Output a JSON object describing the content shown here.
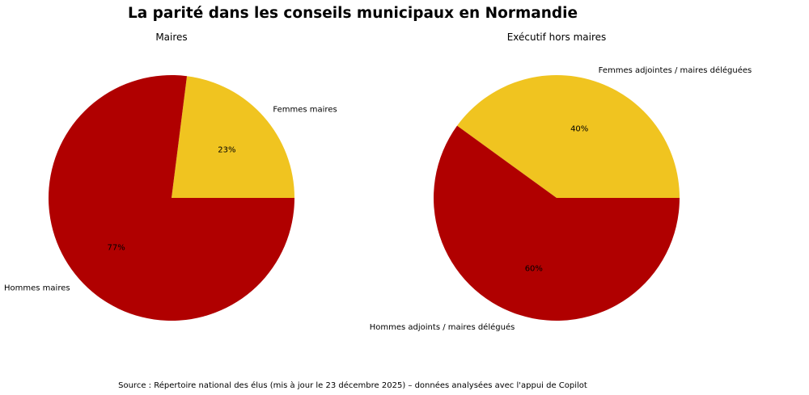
{
  "title": "La parité dans les conseils municipaux en Normandie",
  "source": "Source : Répertoire national des élus (mis à jour le 23 décembre 2025) – données analysées avec l'appui de Copilot",
  "colors": {
    "femmes": "#F0C420",
    "hommes": "#B00000"
  },
  "chart_data": [
    {
      "type": "pie",
      "title": "Maires",
      "categories": [
        "Femmes maires",
        "Hommes maires"
      ],
      "values": [
        23,
        77
      ],
      "labels": [
        "23%",
        "77%"
      ],
      "start_angle": 0,
      "direction": "counterclockwise"
    },
    {
      "type": "pie",
      "title": "Exécutif hors maires",
      "categories": [
        "Femmes adjointes / maires déléguées",
        "Hommes adjoints / maires délégués"
      ],
      "values": [
        40,
        60
      ],
      "labels": [
        "40%",
        "60%"
      ],
      "start_angle": 0,
      "direction": "counterclockwise"
    }
  ]
}
